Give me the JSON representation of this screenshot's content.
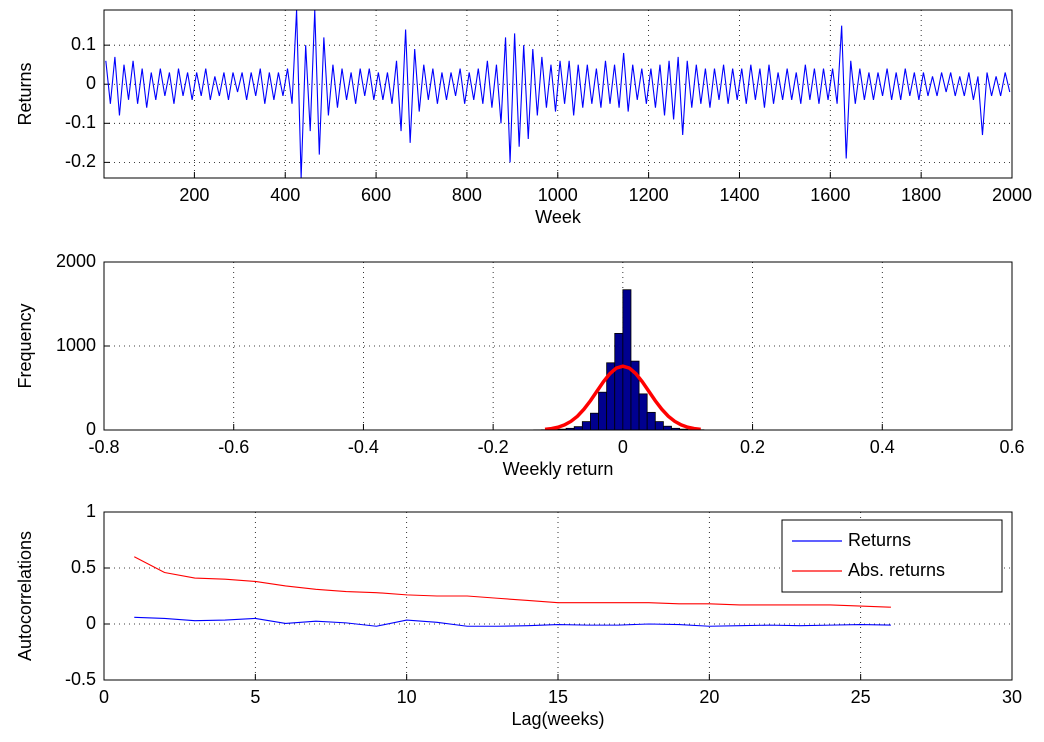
{
  "chart_data": [
    {
      "type": "line",
      "xlabel": "Week",
      "ylabel": "Returns",
      "grid": true,
      "xlim": [
        1,
        2000
      ],
      "xticks": [
        200,
        400,
        600,
        800,
        1000,
        1200,
        1400,
        1600,
        1800,
        2000
      ],
      "ylim": [
        -0.24,
        0.19
      ],
      "yticks": [
        -0.2,
        -0.1,
        0,
        0.1
      ],
      "x": [
        5,
        15,
        25,
        35,
        45,
        55,
        65,
        75,
        85,
        95,
        105,
        115,
        125,
        135,
        145,
        155,
        165,
        175,
        185,
        195,
        205,
        215,
        225,
        235,
        245,
        255,
        265,
        275,
        285,
        295,
        305,
        315,
        325,
        335,
        345,
        355,
        365,
        375,
        385,
        395,
        405,
        415,
        425,
        435,
        445,
        455,
        465,
        475,
        485,
        495,
        505,
        515,
        525,
        535,
        545,
        555,
        565,
        575,
        585,
        595,
        605,
        615,
        625,
        635,
        645,
        655,
        665,
        675,
        685,
        695,
        705,
        715,
        725,
        735,
        745,
        755,
        765,
        775,
        785,
        795,
        805,
        815,
        825,
        835,
        845,
        855,
        865,
        875,
        885,
        895,
        905,
        915,
        925,
        935,
        945,
        955,
        965,
        975,
        985,
        995,
        1005,
        1015,
        1025,
        1035,
        1045,
        1055,
        1065,
        1075,
        1085,
        1095,
        1105,
        1115,
        1125,
        1135,
        1145,
        1155,
        1165,
        1175,
        1185,
        1195,
        1205,
        1215,
        1225,
        1235,
        1245,
        1255,
        1265,
        1275,
        1285,
        1295,
        1305,
        1315,
        1325,
        1335,
        1345,
        1355,
        1365,
        1375,
        1385,
        1395,
        1405,
        1415,
        1425,
        1435,
        1445,
        1455,
        1465,
        1475,
        1485,
        1495,
        1505,
        1515,
        1525,
        1535,
        1545,
        1555,
        1565,
        1575,
        1585,
        1595,
        1605,
        1615,
        1625,
        1635,
        1645,
        1655,
        1665,
        1675,
        1685,
        1695,
        1705,
        1715,
        1725,
        1735,
        1745,
        1755,
        1765,
        1775,
        1785,
        1795,
        1805,
        1815,
        1825,
        1835,
        1845,
        1855,
        1865,
        1875,
        1885,
        1895,
        1905,
        1915,
        1925,
        1935,
        1945,
        1955,
        1965,
        1975,
        1985,
        1995
      ],
      "series": [
        {
          "color": "#0000ff",
          "values": [
            0.06,
            -0.05,
            0.07,
            -0.08,
            0.05,
            -0.04,
            0.06,
            -0.05,
            0.04,
            -0.06,
            0.03,
            -0.04,
            0.04,
            -0.03,
            0.03,
            -0.05,
            0.04,
            -0.03,
            0.03,
            -0.04,
            0.03,
            -0.03,
            0.04,
            -0.04,
            0.02,
            -0.03,
            0.03,
            -0.04,
            0.03,
            -0.02,
            0.03,
            -0.04,
            0.03,
            -0.03,
            0.04,
            -0.05,
            0.03,
            -0.04,
            0.03,
            -0.03,
            0.04,
            -0.05,
            0.19,
            -0.24,
            0.1,
            -0.12,
            0.19,
            -0.18,
            0.12,
            -0.08,
            0.05,
            -0.06,
            0.04,
            -0.04,
            0.03,
            -0.05,
            0.04,
            -0.03,
            0.04,
            -0.04,
            0.03,
            -0.04,
            0.03,
            -0.05,
            0.06,
            -0.12,
            0.14,
            -0.15,
            0.09,
            -0.07,
            0.05,
            -0.04,
            0.04,
            -0.05,
            0.03,
            -0.04,
            0.03,
            -0.03,
            0.04,
            -0.05,
            0.03,
            -0.04,
            0.04,
            -0.05,
            0.06,
            -0.06,
            0.05,
            -0.1,
            0.12,
            -0.2,
            0.13,
            -0.16,
            0.1,
            -0.14,
            0.09,
            -0.08,
            0.07,
            -0.06,
            0.05,
            -0.07,
            0.06,
            -0.05,
            0.06,
            -0.08,
            0.05,
            -0.06,
            0.05,
            -0.05,
            0.04,
            -0.06,
            0.06,
            -0.05,
            0.05,
            -0.06,
            0.08,
            -0.07,
            0.05,
            -0.04,
            0.04,
            -0.05,
            0.04,
            -0.06,
            0.05,
            -0.08,
            0.06,
            -0.09,
            0.07,
            -0.13,
            0.06,
            -0.06,
            0.05,
            -0.05,
            0.04,
            -0.06,
            0.04,
            -0.04,
            0.05,
            -0.05,
            0.04,
            -0.04,
            0.04,
            -0.05,
            0.05,
            -0.04,
            0.04,
            -0.06,
            0.05,
            -0.05,
            0.03,
            -0.04,
            0.04,
            -0.04,
            0.03,
            -0.05,
            0.05,
            -0.04,
            0.04,
            -0.05,
            0.04,
            -0.04,
            0.04,
            -0.05,
            0.15,
            -0.19,
            0.06,
            -0.05,
            0.04,
            -0.04,
            0.03,
            -0.04,
            0.03,
            -0.03,
            0.04,
            -0.04,
            0.03,
            -0.04,
            0.04,
            -0.03,
            0.03,
            -0.04,
            0.03,
            -0.03,
            0.02,
            -0.03,
            0.03,
            -0.02,
            0.03,
            -0.03,
            0.02,
            -0.03,
            0.03,
            -0.04,
            0.02,
            -0.13,
            0.03,
            -0.03,
            0.02,
            -0.03,
            0.03,
            -0.02
          ]
        }
      ]
    },
    {
      "type": "histogram",
      "xlabel": "Weekly return",
      "ylabel": "Frequency",
      "grid": true,
      "xlim": [
        -0.8,
        0.6
      ],
      "xticks": [
        -0.8,
        -0.6,
        -0.4,
        -0.2,
        0,
        0.2,
        0.4,
        0.6
      ],
      "ylim": [
        0,
        2000
      ],
      "yticks": [
        0,
        1000,
        2000
      ],
      "color": "#00008f",
      "bins": [
        -0.15,
        -0.1375,
        -0.125,
        -0.1125,
        -0.1,
        -0.0875,
        -0.075,
        -0.0625,
        -0.05,
        -0.0375,
        -0.025,
        -0.0125,
        0,
        0.0125,
        0.025,
        0.0375,
        0.05,
        0.0625,
        0.075,
        0.0875,
        0.1,
        0.1125,
        0.125,
        0.1375,
        0.15
      ],
      "counts": [
        0,
        2,
        3,
        5,
        10,
        20,
        40,
        100,
        200,
        450,
        800,
        1150,
        1670,
        820,
        430,
        210,
        100,
        45,
        20,
        10,
        5,
        3,
        1,
        0
      ],
      "series": [
        {
          "color": "#ff0000",
          "x": [
            -0.12,
            -0.11,
            -0.1,
            -0.09,
            -0.08,
            -0.07,
            -0.06,
            -0.05,
            -0.04,
            -0.03,
            -0.02,
            -0.01,
            0,
            0.01,
            0.02,
            0.03,
            0.04,
            0.05,
            0.06,
            0.07,
            0.08,
            0.09,
            0.1,
            0.11,
            0.12
          ],
          "values": [
            8,
            17,
            33,
            60,
            103,
            164,
            247,
            348,
            461,
            574,
            671,
            737,
            760,
            737,
            671,
            574,
            461,
            348,
            247,
            164,
            103,
            60,
            33,
            17,
            8
          ]
        }
      ]
    },
    {
      "type": "line",
      "xlabel": "Lag(weeks)",
      "ylabel": "Autocorrelations",
      "grid": true,
      "legend": "northeast",
      "xlim": [
        0,
        30
      ],
      "xticks": [
        0,
        5,
        10,
        15,
        20,
        25,
        30
      ],
      "ylim": [
        -0.5,
        1
      ],
      "yticks": [
        -0.5,
        0,
        0.5,
        1
      ],
      "x": [
        1,
        2,
        3,
        4,
        5,
        6,
        7,
        8,
        9,
        10,
        11,
        12,
        13,
        14,
        15,
        16,
        17,
        18,
        19,
        20,
        21,
        22,
        23,
        24,
        25,
        26
      ],
      "series": [
        {
          "name": "Returns",
          "color": "#0000ff",
          "values": [
            0.06,
            0.05,
            0.03,
            0.035,
            0.05,
            0.005,
            0.025,
            0.01,
            -0.02,
            0.035,
            0.015,
            -0.02,
            -0.02,
            -0.015,
            -0.005,
            -0.01,
            -0.01,
            0,
            -0.005,
            -0.02,
            -0.015,
            -0.01,
            -0.015,
            -0.01,
            -0.005,
            -0.01
          ]
        },
        {
          "name": "Abs. returns",
          "color": "#ff0000",
          "values": [
            0.6,
            0.46,
            0.41,
            0.4,
            0.38,
            0.34,
            0.31,
            0.29,
            0.28,
            0.26,
            0.25,
            0.25,
            0.23,
            0.21,
            0.19,
            0.19,
            0.19,
            0.19,
            0.18,
            0.18,
            0.17,
            0.17,
            0.17,
            0.17,
            0.16,
            0.15
          ]
        }
      ]
    }
  ]
}
